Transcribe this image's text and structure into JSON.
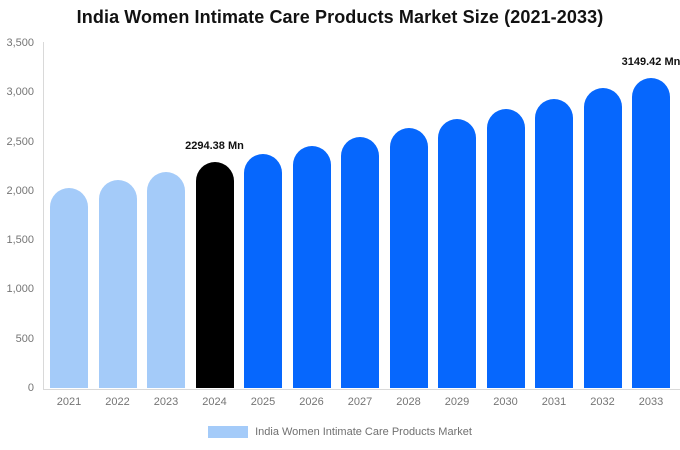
{
  "chart": {
    "title": "India Women Intimate Care Products Market Size (2021-2033)"
  },
  "legend": {
    "label": "India Women Intimate Care Products Market",
    "swatch_color": "#A4CBF9"
  },
  "colors": {
    "light_blue": "#A4CBF9",
    "blue": "#0667FD",
    "highlight_black": "#000000",
    "axis_text": "#757575",
    "axis_line": "#D9D9D9",
    "data_label": "#111111"
  },
  "chart_data": {
    "type": "bar",
    "title": "India Women Intimate Care Products Market Size (2021-2033)",
    "unit": "Mn",
    "categories": [
      "2021",
      "2022",
      "2023",
      "2024",
      "2025",
      "2026",
      "2027",
      "2028",
      "2029",
      "2030",
      "2031",
      "2032",
      "2033"
    ],
    "values": [
      2030,
      2115,
      2190,
      2294.38,
      2375,
      2460,
      2548,
      2640,
      2734,
      2832,
      2934,
      3040,
      3149.42
    ],
    "bar_colors": [
      "#A4CBF9",
      "#A4CBF9",
      "#A4CBF9",
      "#000000",
      "#0667FD",
      "#0667FD",
      "#0667FD",
      "#0667FD",
      "#0667FD",
      "#0667FD",
      "#0667FD",
      "#0667FD",
      "#0667FD"
    ],
    "annotations": [
      {
        "category": "2024",
        "text": "2294.38 Mn"
      },
      {
        "category": "2033",
        "text": "3149.42 Mn"
      }
    ],
    "ylim": [
      0,
      3500
    ],
    "ytick_values": [
      0,
      500,
      1000,
      1500,
      2000,
      2500,
      3000,
      3500
    ],
    "ytick_labels": [
      "0",
      "500",
      "1,000",
      "1,500",
      "2,000",
      "2,500",
      "3,000",
      "3,500"
    ],
    "grid": false,
    "legend_position": "bottom",
    "legend_entries": [
      "India Women Intimate Care Products Market"
    ]
  }
}
